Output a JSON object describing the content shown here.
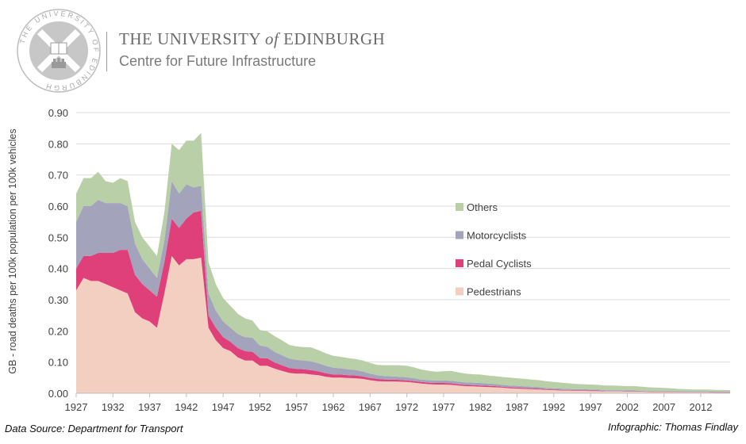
{
  "header": {
    "seal_text": "THE UNIVERSITY OF EDINBURGH",
    "university_prefix": "THE UNIVERSITY ",
    "university_of": "of",
    "university_suffix": " EDINBURGH",
    "centre": "Centre for Future Infrastructure"
  },
  "footer": {
    "source": "Data Source: Department for Transport",
    "credit": "Infographic: Thomas Findlay"
  },
  "colors": {
    "Pedestrians": "#f2cfc0",
    "Pedal Cyclists": "#e0407a",
    "Motorcyclists": "#a3a3bb",
    "Others": "#b8cfa8",
    "grid": "#dcdcdc",
    "axis_text": "#404040"
  },
  "chart_data": {
    "type": "area",
    "stacked": true,
    "title": "",
    "xlabel": "",
    "ylabel": "GB - road deaths per 100k population per 100k vehicles",
    "ylim": [
      0,
      0.9
    ],
    "yticks": [
      "0.00",
      "0.10",
      "0.20",
      "0.30",
      "0.40",
      "0.50",
      "0.60",
      "0.70",
      "0.80",
      "0.90"
    ],
    "xlim": [
      1927,
      2016
    ],
    "xticks": [
      "1927",
      "1932",
      "1937",
      "1942",
      "1947",
      "1952",
      "1957",
      "1962",
      "1967",
      "1972",
      "1977",
      "1982",
      "1987",
      "1992",
      "1997",
      "2002",
      "2007",
      "2012"
    ],
    "grid": "horizontal",
    "legend_position": "right",
    "legend_order": [
      "Others",
      "Motorcyclists",
      "Pedal Cyclists",
      "Pedestrians"
    ],
    "x": [
      1927,
      1928,
      1929,
      1930,
      1931,
      1932,
      1933,
      1934,
      1935,
      1936,
      1937,
      1938,
      1939,
      1940,
      1941,
      1942,
      1943,
      1944,
      1945,
      1946,
      1947,
      1948,
      1949,
      1950,
      1951,
      1952,
      1953,
      1954,
      1955,
      1956,
      1957,
      1958,
      1959,
      1960,
      1961,
      1962,
      1963,
      1964,
      1965,
      1966,
      1967,
      1968,
      1969,
      1970,
      1971,
      1972,
      1973,
      1974,
      1975,
      1976,
      1977,
      1978,
      1979,
      1980,
      1981,
      1982,
      1983,
      1984,
      1985,
      1986,
      1987,
      1988,
      1989,
      1990,
      1991,
      1992,
      1993,
      1994,
      1995,
      1996,
      1997,
      1998,
      1999,
      2000,
      2001,
      2002,
      2003,
      2004,
      2005,
      2006,
      2007,
      2008,
      2009,
      2010,
      2011,
      2012,
      2013,
      2014,
      2015,
      2016
    ],
    "series": [
      {
        "name": "Pedestrians",
        "values": [
          0.33,
          0.37,
          0.36,
          0.36,
          0.35,
          0.34,
          0.33,
          0.32,
          0.26,
          0.24,
          0.23,
          0.21,
          0.32,
          0.44,
          0.41,
          0.43,
          0.43,
          0.435,
          0.21,
          0.17,
          0.145,
          0.135,
          0.115,
          0.105,
          0.105,
          0.088,
          0.088,
          0.079,
          0.072,
          0.065,
          0.063,
          0.063,
          0.06,
          0.058,
          0.053,
          0.05,
          0.05,
          0.049,
          0.048,
          0.046,
          0.042,
          0.039,
          0.038,
          0.038,
          0.037,
          0.036,
          0.034,
          0.031,
          0.029,
          0.028,
          0.028,
          0.027,
          0.025,
          0.023,
          0.022,
          0.021,
          0.02,
          0.019,
          0.018,
          0.016,
          0.015,
          0.014,
          0.013,
          0.012,
          0.011,
          0.01,
          0.009,
          0.009,
          0.008,
          0.008,
          0.007,
          0.007,
          0.006,
          0.006,
          0.006,
          0.005,
          0.005,
          0.005,
          0.004,
          0.004,
          0.004,
          0.004,
          0.003,
          0.003,
          0.003,
          0.003,
          0.003,
          0.002,
          0.002,
          0.002
        ]
      },
      {
        "name": "Pedal Cyclists",
        "values": [
          0.07,
          0.07,
          0.08,
          0.09,
          0.1,
          0.11,
          0.13,
          0.14,
          0.12,
          0.11,
          0.1,
          0.1,
          0.1,
          0.12,
          0.12,
          0.13,
          0.15,
          0.15,
          0.04,
          0.04,
          0.035,
          0.03,
          0.03,
          0.03,
          0.028,
          0.025,
          0.024,
          0.02,
          0.018,
          0.016,
          0.015,
          0.014,
          0.014,
          0.012,
          0.011,
          0.01,
          0.01,
          0.009,
          0.009,
          0.008,
          0.007,
          0.007,
          0.006,
          0.006,
          0.006,
          0.005,
          0.005,
          0.005,
          0.005,
          0.005,
          0.005,
          0.005,
          0.004,
          0.004,
          0.004,
          0.004,
          0.004,
          0.004,
          0.003,
          0.003,
          0.003,
          0.003,
          0.003,
          0.003,
          0.002,
          0.002,
          0.002,
          0.002,
          0.002,
          0.002,
          0.002,
          0.002,
          0.001,
          0.001,
          0.001,
          0.001,
          0.001,
          0.001,
          0.001,
          0.001,
          0.001,
          0.001,
          0.001,
          0.001,
          0.001,
          0.001,
          0.001,
          0.001,
          0.001,
          0.001
        ]
      },
      {
        "name": "Motorcyclists",
        "values": [
          0.15,
          0.16,
          0.16,
          0.17,
          0.16,
          0.16,
          0.15,
          0.14,
          0.1,
          0.08,
          0.07,
          0.06,
          0.07,
          0.12,
          0.11,
          0.11,
          0.08,
          0.08,
          0.07,
          0.055,
          0.05,
          0.045,
          0.045,
          0.045,
          0.045,
          0.04,
          0.037,
          0.034,
          0.032,
          0.03,
          0.029,
          0.028,
          0.028,
          0.026,
          0.024,
          0.022,
          0.02,
          0.019,
          0.018,
          0.016,
          0.014,
          0.012,
          0.011,
          0.01,
          0.01,
          0.01,
          0.009,
          0.008,
          0.008,
          0.008,
          0.008,
          0.008,
          0.008,
          0.008,
          0.008,
          0.008,
          0.007,
          0.007,
          0.006,
          0.006,
          0.006,
          0.005,
          0.005,
          0.005,
          0.004,
          0.004,
          0.004,
          0.003,
          0.003,
          0.003,
          0.003,
          0.003,
          0.003,
          0.003,
          0.003,
          0.003,
          0.003,
          0.002,
          0.002,
          0.002,
          0.002,
          0.002,
          0.002,
          0.002,
          0.002,
          0.002,
          0.002,
          0.002,
          0.002,
          0.002
        ]
      },
      {
        "name": "Others",
        "values": [
          0.09,
          0.09,
          0.09,
          0.09,
          0.07,
          0.065,
          0.08,
          0.08,
          0.07,
          0.07,
          0.07,
          0.07,
          0.09,
          0.12,
          0.14,
          0.14,
          0.15,
          0.17,
          0.1,
          0.085,
          0.075,
          0.07,
          0.065,
          0.06,
          0.055,
          0.05,
          0.05,
          0.05,
          0.048,
          0.044,
          0.043,
          0.043,
          0.045,
          0.042,
          0.04,
          0.038,
          0.037,
          0.036,
          0.035,
          0.035,
          0.034,
          0.033,
          0.035,
          0.036,
          0.037,
          0.037,
          0.035,
          0.032,
          0.03,
          0.028,
          0.03,
          0.032,
          0.03,
          0.028,
          0.027,
          0.027,
          0.026,
          0.025,
          0.025,
          0.025,
          0.024,
          0.024,
          0.023,
          0.022,
          0.022,
          0.02,
          0.019,
          0.018,
          0.017,
          0.016,
          0.016,
          0.015,
          0.015,
          0.015,
          0.014,
          0.014,
          0.014,
          0.013,
          0.012,
          0.011,
          0.01,
          0.009,
          0.008,
          0.007,
          0.006,
          0.006,
          0.006,
          0.006,
          0.006,
          0.005
        ]
      }
    ]
  }
}
